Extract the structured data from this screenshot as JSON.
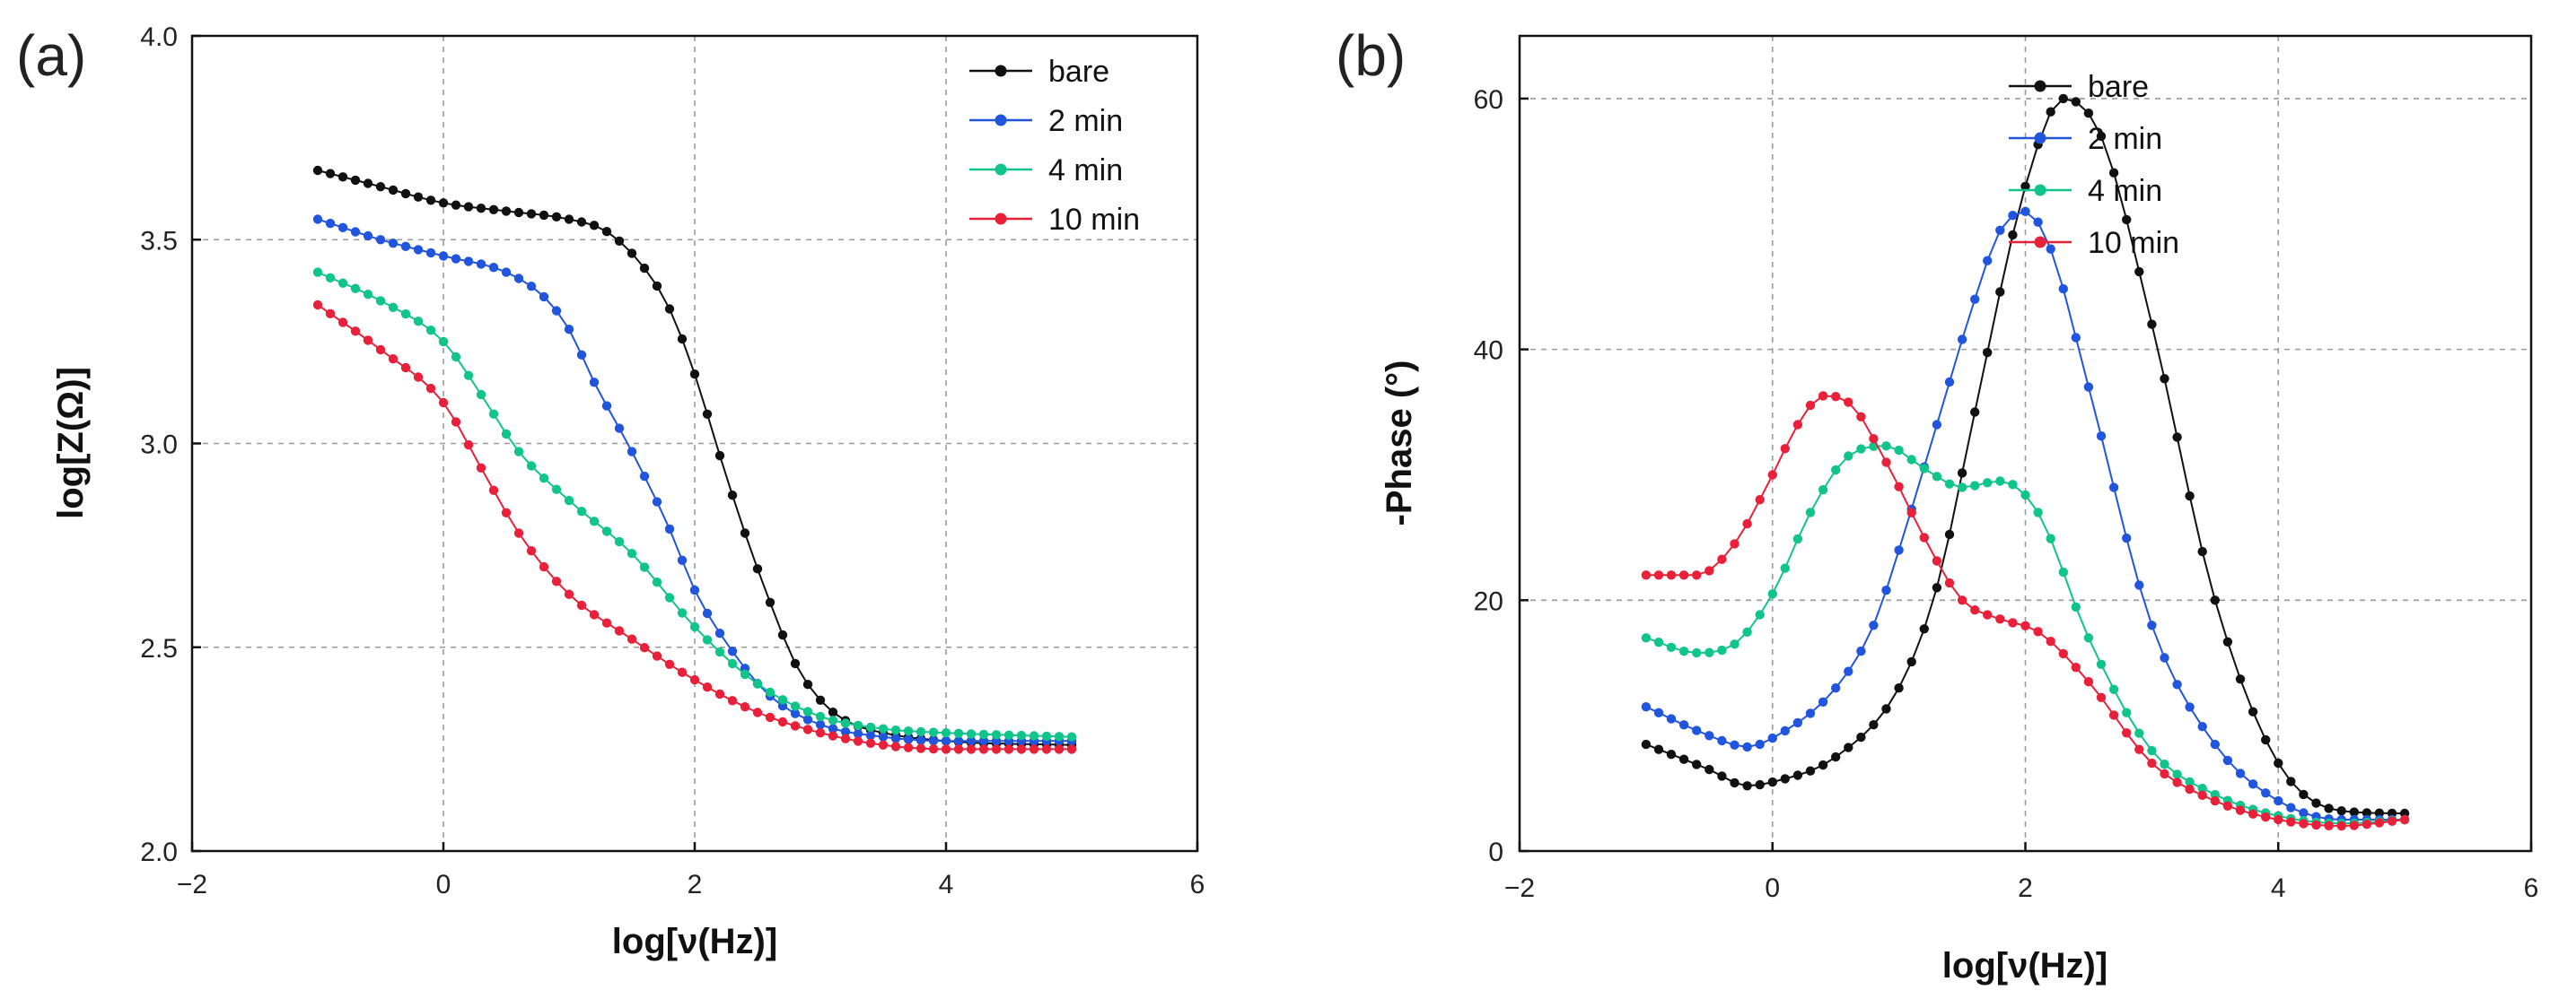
{
  "panels": [
    {
      "label": "(a)"
    },
    {
      "label": "(b)"
    }
  ],
  "chart_data": [
    {
      "type": "line",
      "title": "",
      "xlabel": "log[ν(Hz)]",
      "ylabel": "log[Z(Ω)]",
      "xlim": [
        -2,
        6
      ],
      "ylim": [
        2.0,
        4.0
      ],
      "xticks": [
        -2,
        0,
        2,
        4,
        6
      ],
      "xtick_labels": [
        "−2",
        "0",
        "2",
        "4",
        "6"
      ],
      "yticks": [
        2.0,
        2.5,
        3.0,
        3.5,
        4.0
      ],
      "ytick_labels": [
        "2.0",
        "2.5",
        "3.0",
        "3.5",
        "4.0"
      ],
      "grid": true,
      "legend_position": "top-right",
      "x_points": {
        "start": -1,
        "end": 5,
        "count": 61
      },
      "series": [
        {
          "name": "bare",
          "color": "#111111",
          "anchors_x": [
            -1,
            -0.5,
            0,
            0.5,
            1,
            1.3,
            1.6,
            1.8,
            2.0,
            2.2,
            2.4,
            2.6,
            2.8,
            3.0,
            3.2,
            3.5,
            4.0,
            5.0
          ],
          "anchors_y": [
            3.67,
            3.63,
            3.59,
            3.57,
            3.55,
            3.52,
            3.43,
            3.33,
            3.17,
            2.97,
            2.78,
            2.61,
            2.46,
            2.37,
            2.32,
            2.29,
            2.27,
            2.26
          ]
        },
        {
          "name": "2 min",
          "color": "#2255dd",
          "anchors_x": [
            -1,
            -0.5,
            0,
            0.5,
            0.8,
            1.0,
            1.2,
            1.5,
            1.8,
            2.0,
            2.3,
            2.6,
            3.0,
            3.5,
            4.0,
            5.0
          ],
          "anchors_y": [
            3.55,
            3.5,
            3.46,
            3.42,
            3.36,
            3.28,
            3.15,
            2.98,
            2.79,
            2.64,
            2.49,
            2.38,
            2.31,
            2.28,
            2.27,
            2.27
          ]
        },
        {
          "name": "4 min",
          "color": "#11c48a",
          "anchors_x": [
            -1,
            -0.5,
            0,
            0.3,
            0.6,
            1.0,
            1.5,
            2.0,
            2.5,
            3.0,
            3.5,
            4.0,
            5.0
          ],
          "anchors_y": [
            3.42,
            3.35,
            3.25,
            3.12,
            2.98,
            2.86,
            2.73,
            2.55,
            2.41,
            2.33,
            2.3,
            2.29,
            2.28
          ]
        },
        {
          "name": "10 min",
          "color": "#e8203a",
          "anchors_x": [
            -1,
            -0.5,
            0,
            0.3,
            0.6,
            1.0,
            1.5,
            2.0,
            2.5,
            3.0,
            3.5,
            4.0,
            5.0
          ],
          "anchors_y": [
            3.34,
            3.23,
            3.1,
            2.94,
            2.78,
            2.63,
            2.52,
            2.42,
            2.34,
            2.29,
            2.26,
            2.25,
            2.25
          ]
        }
      ]
    },
    {
      "type": "line",
      "title": "",
      "xlabel": "log[ν(Hz)]",
      "ylabel": "-Phase (°)",
      "xlim": [
        -2,
        6
      ],
      "ylim": [
        0,
        65
      ],
      "xticks": [
        -2,
        0,
        2,
        4,
        6
      ],
      "xtick_labels": [
        "−2",
        "0",
        "2",
        "4",
        "6"
      ],
      "yticks": [
        0,
        20,
        40,
        60
      ],
      "ytick_labels": [
        "0",
        "20",
        "40",
        "60"
      ],
      "grid": true,
      "legend_position": "top-right",
      "x_points": {
        "start": -1,
        "end": 5,
        "count": 61
      },
      "series": [
        {
          "name": "bare",
          "color": "#111111",
          "anchors_x": [
            -1,
            -0.5,
            -0.2,
            0,
            0.5,
            1.0,
            1.3,
            1.6,
            2.0,
            2.3,
            2.6,
            3.0,
            3.5,
            4.0,
            4.5,
            5.0
          ],
          "anchors_y": [
            8.5,
            6.5,
            5.2,
            5.5,
            7.5,
            13.0,
            21.0,
            35.0,
            53.0,
            60.0,
            57.0,
            42.0,
            20.0,
            7.0,
            3.2,
            3.0
          ]
        },
        {
          "name": "2 min",
          "color": "#2255dd",
          "anchors_x": [
            -1,
            -0.5,
            -0.2,
            0,
            0.5,
            0.8,
            1.0,
            1.3,
            1.6,
            1.8,
            2.0,
            2.2,
            2.5,
            3.0,
            3.5,
            4.0,
            4.5,
            5.0
          ],
          "anchors_y": [
            11.5,
            9.2,
            8.3,
            9.0,
            13.0,
            18.0,
            24.0,
            34.0,
            44.0,
            49.5,
            51.0,
            48.0,
            37.0,
            18.0,
            8.5,
            4.0,
            2.5,
            2.5
          ]
        },
        {
          "name": "4 min",
          "color": "#11c48a",
          "anchors_x": [
            -1,
            -0.6,
            -0.3,
            0,
            0.3,
            0.6,
            0.9,
            1.2,
            1.5,
            1.8,
            2.1,
            2.5,
            3.0,
            3.5,
            4.0,
            4.5,
            5.0
          ],
          "anchors_y": [
            17.0,
            15.8,
            16.5,
            20.5,
            27.0,
            31.5,
            32.3,
            30.5,
            29.0,
            29.5,
            27.0,
            17.0,
            8.0,
            4.5,
            2.8,
            2.2,
            2.5
          ]
        },
        {
          "name": "10 min",
          "color": "#e8203a",
          "anchors_x": [
            -1,
            -0.6,
            -0.3,
            0,
            0.2,
            0.4,
            0.6,
            0.9,
            1.2,
            1.5,
            1.8,
            2.1,
            2.5,
            3.0,
            3.5,
            4.0,
            4.5,
            5.0
          ],
          "anchors_y": [
            22.0,
            22.0,
            24.5,
            30.0,
            34.0,
            36.3,
            35.8,
            31.0,
            25.0,
            20.0,
            18.5,
            17.5,
            13.5,
            7.0,
            4.0,
            2.5,
            2.0,
            2.5
          ]
        }
      ]
    }
  ]
}
